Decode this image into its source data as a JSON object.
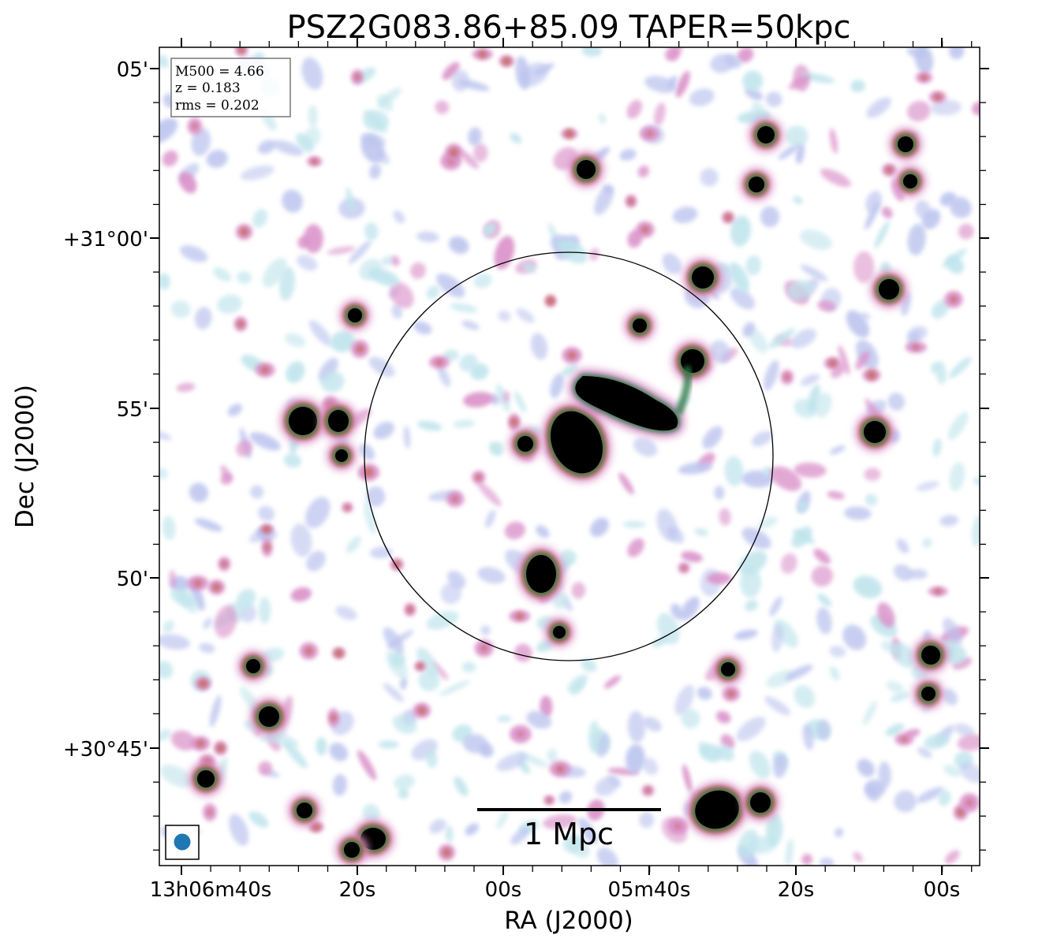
{
  "title": "PSZ2G083.86+85.09 TAPER=50kpc",
  "x_axis": {
    "label": "RA (J2000)",
    "ticks": [
      "13h06m40s",
      "20s",
      "00s",
      "05m40s",
      "20s",
      "00s"
    ]
  },
  "y_axis": {
    "label": "Dec (J2000)",
    "ticks": [
      "05'",
      "+31°00'",
      "55'",
      "50'",
      "+30°45'"
    ]
  },
  "info_box": {
    "mass": "M500 = 4.66",
    "redshift": "z = 0.183",
    "rms": "rms = 0.202"
  },
  "scale_bar": {
    "label": "1 Mpc"
  },
  "colors": {
    "background": "#ffffff",
    "noise_light": "#bfe4ec",
    "noise_mid": "#bcc4ee",
    "noise_pink": "#d98fc8",
    "noise_red": "#c0604c",
    "source_green": "#2e7a4a",
    "source_core": "#000000",
    "beam": "#1f77b4"
  }
}
